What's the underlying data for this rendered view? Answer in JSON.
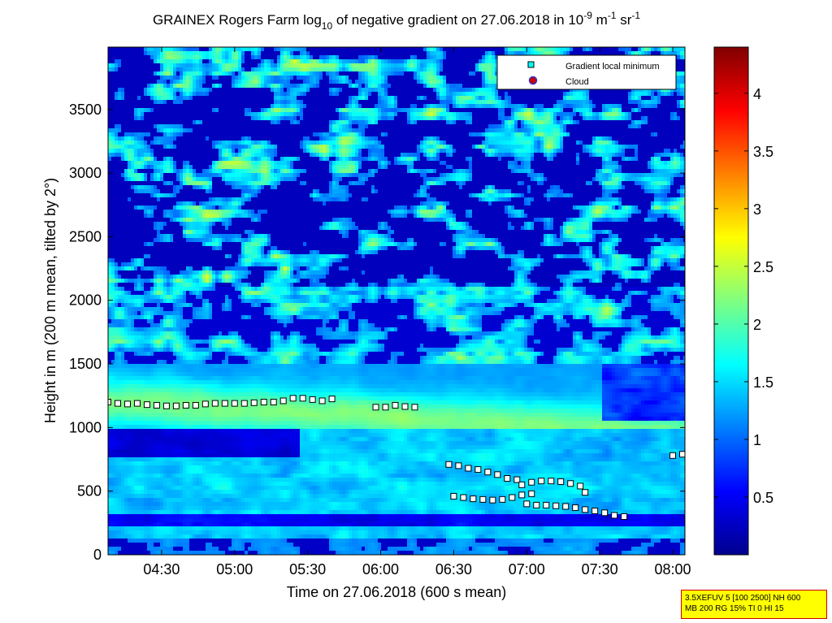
{
  "chart_data": {
    "type": "heatmap",
    "title": "GRAINEX Rogers Farm log10 of negative gradient on 27.06.2018 in 10-9 m-1 sr-1",
    "title_parts": {
      "main": "GRAINEX Rogers Farm log",
      "sub": "10",
      "mid": " of negative gradient on 27.06.2018 in 10",
      "sup1": "-9",
      "m": " m",
      "sup2": "-1",
      "sr": " sr",
      "sup3": "-1"
    },
    "xlabel": "Time on 27.06.2018 (600 s mean)",
    "ylabel": "Height in m (200 m mean, tilted by 2°)",
    "xlim": [
      "04:08",
      "08:05"
    ],
    "ylim": [
      0,
      3990
    ],
    "x_ticks": [
      "04:30",
      "05:00",
      "05:30",
      "06:00",
      "06:30",
      "07:00",
      "07:30",
      "08:00"
    ],
    "y_ticks": [
      0,
      500,
      1000,
      1500,
      2000,
      2500,
      3000,
      3500
    ],
    "colorbar": {
      "range": [
        0,
        4.4
      ],
      "ticks": [
        "0.5",
        "1",
        "1.5",
        "2",
        "2.5",
        "3",
        "3.5",
        "4"
      ],
      "colormap": "jet"
    },
    "legend": {
      "placement": "top-right",
      "entries": [
        "Gradient local minimum",
        "Cloud"
      ]
    },
    "series": [
      {
        "name": "Gradient local minimum",
        "marker": "square",
        "color": "#00ffff",
        "points": [
          [
            "04:08",
            1200
          ],
          [
            "04:12",
            1190
          ],
          [
            "04:16",
            1185
          ],
          [
            "04:20",
            1190
          ],
          [
            "04:24",
            1180
          ],
          [
            "04:28",
            1175
          ],
          [
            "04:32",
            1170
          ],
          [
            "04:36",
            1170
          ],
          [
            "04:40",
            1175
          ],
          [
            "04:44",
            1175
          ],
          [
            "04:48",
            1185
          ],
          [
            "04:52",
            1190
          ],
          [
            "04:56",
            1190
          ],
          [
            "05:00",
            1190
          ],
          [
            "05:04",
            1190
          ],
          [
            "05:08",
            1195
          ],
          [
            "05:12",
            1200
          ],
          [
            "05:16",
            1200
          ],
          [
            "05:20",
            1210
          ],
          [
            "05:24",
            1230
          ],
          [
            "05:28",
            1230
          ],
          [
            "05:32",
            1220
          ],
          [
            "05:36",
            1210
          ],
          [
            "05:40",
            1225
          ],
          [
            "05:58",
            1160
          ],
          [
            "06:02",
            1160
          ],
          [
            "06:06",
            1175
          ],
          [
            "06:10",
            1165
          ],
          [
            "06:14",
            1160
          ],
          [
            "06:28",
            710
          ],
          [
            "06:32",
            700
          ],
          [
            "06:36",
            680
          ],
          [
            "06:40",
            670
          ],
          [
            "06:44",
            650
          ],
          [
            "06:48",
            630
          ],
          [
            "06:52",
            600
          ],
          [
            "06:56",
            590
          ],
          [
            "06:30",
            460
          ],
          [
            "06:34",
            450
          ],
          [
            "06:38",
            440
          ],
          [
            "06:42",
            435
          ],
          [
            "06:46",
            430
          ],
          [
            "06:50",
            435
          ],
          [
            "06:54",
            450
          ],
          [
            "06:58",
            470
          ],
          [
            "07:02",
            480
          ],
          [
            "06:58",
            550
          ],
          [
            "07:02",
            570
          ],
          [
            "07:06",
            580
          ],
          [
            "07:10",
            580
          ],
          [
            "07:14",
            575
          ],
          [
            "07:18",
            560
          ],
          [
            "07:22",
            540
          ],
          [
            "07:24",
            490
          ],
          [
            "07:00",
            400
          ],
          [
            "07:04",
            390
          ],
          [
            "07:08",
            390
          ],
          [
            "07:12",
            385
          ],
          [
            "07:16",
            380
          ],
          [
            "07:20",
            370
          ],
          [
            "07:24",
            355
          ],
          [
            "07:28",
            345
          ],
          [
            "07:32",
            330
          ],
          [
            "07:36",
            310
          ],
          [
            "07:40",
            300
          ],
          [
            "08:00",
            780
          ],
          [
            "08:04",
            790
          ]
        ]
      },
      {
        "name": "Cloud",
        "marker": "circle",
        "color": "#cc0000",
        "points": []
      }
    ],
    "grid": false
  },
  "info_box": {
    "line1": "3.5XEFUV 5 [100 2500] NH 600",
    "line2": "MB 200 RG 15% TI 0 HI 15"
  }
}
